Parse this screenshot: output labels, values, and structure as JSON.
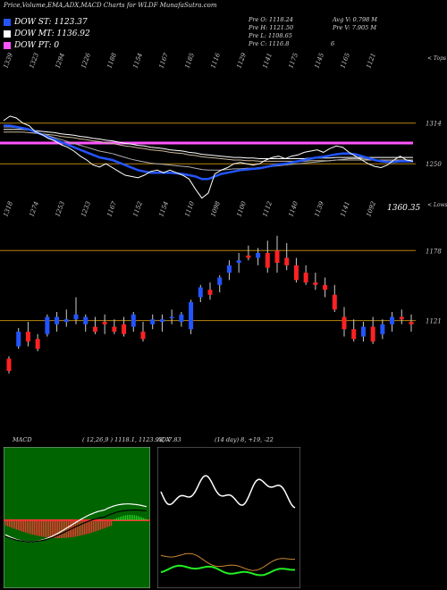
{
  "header": {
    "title": "Price,Volume,EMA,ADX,MACD Charts for WLDF MunafaSutra.com"
  },
  "legend": [
    {
      "label": "DOW ST:",
      "value": "1123.37",
      "color": "#2255ff"
    },
    {
      "label": "DOW MT:",
      "value": "1136.92",
      "color": "#ffffff"
    },
    {
      "label": "DOW PT:",
      "value": "0",
      "color": "#ff55ff"
    }
  ],
  "info": {
    "pre_o": "Pre   O: 1118.24",
    "avg_v": "Avg V: 0.798  M",
    "pre_h": "Pre   H: 1121.50",
    "pre_v": "Pre   V: 7.905  M",
    "pre_l": "Pre   L: 1108.65",
    "pre_c": "Pre   C: 1116.8",
    "pre_c_extra": "6"
  },
  "top_chart": {
    "label_top": "< Tops",
    "label_low": "< Lows",
    "top_labels": [
      "1339",
      "1323",
      "1294",
      "1226",
      "1188",
      "1154",
      "1167",
      "1185",
      "1116",
      "1129",
      "1141",
      "1175",
      "1145",
      "1165",
      "1121"
    ],
    "low_labels": [
      "1318",
      "1274",
      "1253",
      "1233",
      "1167",
      "1152",
      "1154",
      "1110",
      "1098",
      "1100",
      "1112",
      "1140",
      "1139",
      "1141",
      "1092"
    ],
    "price_axis": [
      "1314",
      "1250"
    ],
    "price_now": "1360.35",
    "hlines": [
      1314,
      1250
    ],
    "ylim": [
      1180,
      1360
    ],
    "close": [
      1318,
      1325,
      1322,
      1314,
      1310,
      1300,
      1296,
      1290,
      1286,
      1280,
      1276,
      1270,
      1262,
      1256,
      1248,
      1245,
      1250,
      1244,
      1238,
      1232,
      1230,
      1228,
      1232,
      1238,
      1240,
      1236,
      1240,
      1236,
      1232,
      1226,
      1210,
      1196,
      1204,
      1234,
      1240,
      1244,
      1250,
      1252,
      1250,
      1248,
      1250,
      1256,
      1260,
      1262,
      1258,
      1262,
      1264,
      1268,
      1270,
      1272,
      1268,
      1274,
      1278,
      1276,
      1268,
      1262,
      1256,
      1250,
      1246,
      1244,
      1248,
      1256,
      1262,
      1256,
      1254
    ],
    "ema_fast": [
      1308,
      1308,
      1307,
      1305,
      1303,
      1300,
      1297,
      1294,
      1291,
      1288,
      1285,
      1282,
      1279,
      1276,
      1273,
      1270,
      1268,
      1266,
      1263,
      1260,
      1257,
      1255,
      1253,
      1251,
      1250,
      1249,
      1248,
      1247,
      1246,
      1245,
      1243,
      1241,
      1240,
      1240,
      1240,
      1241,
      1242,
      1242,
      1243,
      1243,
      1244,
      1245,
      1246,
      1247,
      1248,
      1249,
      1250,
      1251,
      1252,
      1253,
      1254,
      1255,
      1256,
      1257,
      1258,
      1258,
      1258,
      1257,
      1256,
      1255,
      1254,
      1254,
      1254,
      1254,
      1254
    ],
    "ema_slow": [
      1300,
      1300,
      1300,
      1300,
      1299,
      1298,
      1297,
      1296,
      1295,
      1293,
      1292,
      1291,
      1289,
      1288,
      1286,
      1285,
      1283,
      1282,
      1280,
      1278,
      1277,
      1275,
      1274,
      1272,
      1271,
      1270,
      1268,
      1267,
      1266,
      1264,
      1263,
      1261,
      1260,
      1259,
      1258,
      1257,
      1256,
      1256,
      1255,
      1255,
      1254,
      1254,
      1254,
      1254,
      1254,
      1254,
      1254,
      1254,
      1255,
      1255,
      1255,
      1255,
      1256,
      1256,
      1256,
      1256,
      1256,
      1256,
      1256,
      1256,
      1256,
      1256,
      1256,
      1256,
      1256
    ],
    "dow_st": [
      1310,
      1310,
      1308,
      1306,
      1304,
      1300,
      1296,
      1292,
      1288,
      1284,
      1280,
      1276,
      1272,
      1268,
      1264,
      1260,
      1258,
      1256,
      1252,
      1248,
      1244,
      1240,
      1238,
      1236,
      1236,
      1236,
      1236,
      1235,
      1234,
      1232,
      1230,
      1226,
      1226,
      1230,
      1234,
      1236,
      1238,
      1240,
      1241,
      1242,
      1243,
      1245,
      1247,
      1249,
      1250,
      1252,
      1254,
      1256,
      1258,
      1260,
      1261,
      1263,
      1265,
      1266,
      1266,
      1265,
      1262,
      1259,
      1256,
      1254,
      1253,
      1253,
      1254,
      1254,
      1254
    ],
    "dow_pt_level": 1292
  },
  "candle_chart": {
    "price_axis": [
      "1178",
      "1121"
    ],
    "hlines": [
      1178,
      1121
    ],
    "ylim": [
      1040,
      1200
    ],
    "candles": [
      [
        1090,
        1092,
        1078,
        1080
      ],
      [
        1100,
        1115,
        1098,
        1112
      ],
      [
        1112,
        1120,
        1100,
        1104
      ],
      [
        1106,
        1110,
        1096,
        1098
      ],
      [
        1110,
        1126,
        1108,
        1124
      ],
      [
        1118,
        1128,
        1112,
        1124
      ],
      [
        1120,
        1130,
        1116,
        1122
      ],
      [
        1122,
        1140,
        1118,
        1126
      ],
      [
        1118,
        1126,
        1112,
        1124
      ],
      [
        1116,
        1124,
        1110,
        1112
      ],
      [
        1120,
        1126,
        1110,
        1118
      ],
      [
        1116,
        1122,
        1110,
        1112
      ],
      [
        1118,
        1124,
        1108,
        1110
      ],
      [
        1116,
        1128,
        1112,
        1126
      ],
      [
        1112,
        1120,
        1104,
        1106
      ],
      [
        1118,
        1126,
        1114,
        1122
      ],
      [
        1120,
        1126,
        1112,
        1122
      ],
      [
        1124,
        1130,
        1118,
        1124
      ],
      [
        1120,
        1128,
        1116,
        1126
      ],
      [
        1114,
        1138,
        1110,
        1136
      ],
      [
        1140,
        1150,
        1136,
        1148
      ],
      [
        1146,
        1152,
        1138,
        1142
      ],
      [
        1150,
        1158,
        1144,
        1156
      ],
      [
        1160,
        1170,
        1154,
        1166
      ],
      [
        1168,
        1176,
        1160,
        1170
      ],
      [
        1174,
        1182,
        1170,
        1172
      ],
      [
        1172,
        1180,
        1166,
        1176
      ],
      [
        1176,
        1186,
        1160,
        1164
      ],
      [
        1178,
        1190,
        1160,
        1168
      ],
      [
        1172,
        1184,
        1162,
        1166
      ],
      [
        1166,
        1172,
        1152,
        1154
      ],
      [
        1160,
        1166,
        1150,
        1152
      ],
      [
        1152,
        1160,
        1146,
        1150
      ],
      [
        1150,
        1156,
        1140,
        1146
      ],
      [
        1142,
        1150,
        1128,
        1130
      ],
      [
        1124,
        1132,
        1108,
        1114
      ],
      [
        1114,
        1122,
        1104,
        1106
      ],
      [
        1108,
        1120,
        1104,
        1116
      ],
      [
        1116,
        1124,
        1102,
        1104
      ],
      [
        1110,
        1122,
        1106,
        1118
      ],
      [
        1118,
        1128,
        1112,
        1124
      ],
      [
        1124,
        1130,
        1118,
        1122
      ],
      [
        1120,
        1126,
        1112,
        1118
      ]
    ]
  },
  "macd_panel": {
    "title": "MACD",
    "params": "( 12,26,9 ) 1118.1,  1123.93, -7.83"
  },
  "adx_panel": {
    "title": "ADX",
    "params": "(14  day) 8, +19, -22"
  }
}
